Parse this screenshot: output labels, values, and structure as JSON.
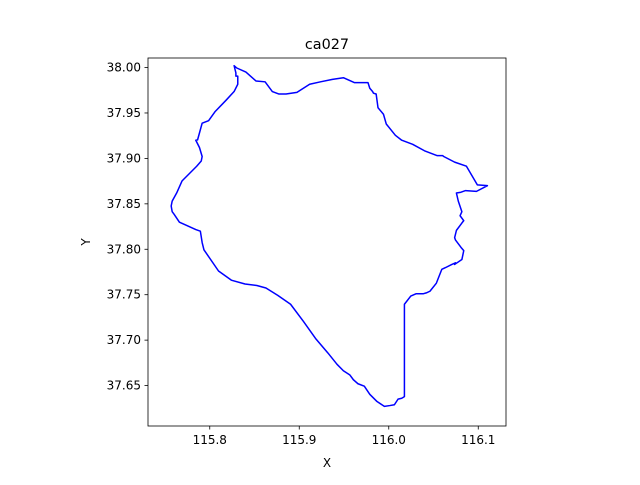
{
  "chart_data": {
    "type": "line",
    "title": "ca027",
    "xlabel": "X",
    "ylabel": "Y",
    "xlim": [
      115.731,
      116.131
    ],
    "ylim": [
      37.6055,
      38.0105
    ],
    "xticks": [
      115.8,
      115.9,
      116.0,
      116.1
    ],
    "xtick_labels": [
      "115.8",
      "115.9",
      "116.0",
      "116.1"
    ],
    "yticks": [
      37.65,
      37.7,
      37.75,
      37.8,
      37.85,
      37.9,
      37.95,
      38.0
    ],
    "ytick_labels": [
      "37.65",
      "37.70",
      "37.75",
      "37.80",
      "37.85",
      "37.90",
      "37.95",
      "38.00"
    ],
    "grid": false,
    "series": [
      {
        "color": "#0000ff",
        "closed": true,
        "x": [
          116.0175,
          116.0246,
          116.0307,
          116.0388,
          116.0419,
          116.046,
          116.0532,
          116.0593,
          116.0634,
          116.0705,
          116.0746,
          116.0736,
          116.0817,
          116.0838,
          116.0807,
          116.0746,
          116.0736,
          116.0756,
          116.0817,
          116.0838,
          116.0797,
          116.0817,
          116.0777,
          116.0756,
          116.0807,
          116.0858,
          116.098,
          116.1102,
          116.099,
          116.0868,
          116.0736,
          116.0614,
          116.0603,
          116.0542,
          116.0399,
          116.0267,
          116.0145,
          116.0074,
          115.9972,
          115.9941,
          115.988,
          115.9859,
          115.9829,
          115.9819,
          115.9788,
          115.9768,
          115.9615,
          115.9493,
          115.9371,
          115.9238,
          115.9116,
          115.8974,
          115.8852,
          115.877,
          115.8699,
          115.8618,
          115.8516,
          115.8404,
          115.8302,
          115.8272,
          115.8272,
          115.8292,
          115.8292,
          115.8313,
          115.8313,
          115.8272,
          115.818,
          115.8058,
          115.7987,
          115.7915,
          115.7864,
          115.7844,
          115.7885,
          115.7915,
          115.7905,
          115.7854,
          115.7691,
          115.763,
          115.758,
          115.7569,
          115.758,
          115.76,
          115.7661,
          115.7742,
          115.7844,
          115.7895,
          115.7915,
          115.7935,
          115.8098,
          115.8241,
          115.8394,
          115.8526,
          115.8628,
          115.876,
          115.8903,
          115.9045,
          115.9188,
          115.932,
          115.9422,
          115.9493,
          115.9564,
          115.9605,
          115.9656,
          115.9727,
          115.9788,
          115.9869,
          115.9951,
          116.0012,
          116.0063,
          116.0104,
          116.0145,
          116.0175
        ],
        "y": [
          37.7395,
          37.7485,
          37.7511,
          37.7511,
          37.752,
          37.7538,
          37.7627,
          37.778,
          37.7798,
          37.7833,
          37.7851,
          37.7833,
          37.7887,
          37.7985,
          37.8021,
          37.8101,
          37.8128,
          37.8208,
          37.8289,
          37.8315,
          37.8369,
          37.8413,
          37.853,
          37.8619,
          37.8628,
          37.8646,
          37.8637,
          37.87,
          37.8709,
          37.8914,
          37.8959,
          37.9021,
          37.903,
          37.903,
          37.9084,
          37.9155,
          37.92,
          37.9254,
          37.9379,
          37.9486,
          37.9557,
          37.9709,
          37.9718,
          37.9736,
          37.9772,
          37.9834,
          37.9834,
          37.9888,
          37.987,
          37.9843,
          37.9816,
          37.9727,
          37.9709,
          37.9709,
          37.9736,
          37.9843,
          37.9852,
          37.995,
          37.9995,
          38.0021,
          38.0021,
          37.9941,
          37.9905,
          37.9905,
          37.9816,
          37.9736,
          37.9638,
          37.9513,
          37.9415,
          37.9388,
          37.9204,
          37.92,
          37.912,
          37.9021,
          37.8971,
          37.8914,
          37.8753,
          37.8619,
          37.853,
          37.8476,
          37.8414,
          37.8387,
          37.8298,
          37.8262,
          37.8217,
          37.8199,
          37.8074,
          37.7994,
          37.7761,
          37.766,
          37.7618,
          37.7601,
          37.7574,
          37.7493,
          37.7395,
          37.7208,
          37.7011,
          37.6859,
          37.6734,
          37.6663,
          37.6618,
          37.6564,
          37.652,
          37.6493,
          37.6404,
          37.6324,
          37.6271,
          37.628,
          37.6289,
          37.6351,
          37.636,
          37.6378
        ]
      }
    ]
  }
}
